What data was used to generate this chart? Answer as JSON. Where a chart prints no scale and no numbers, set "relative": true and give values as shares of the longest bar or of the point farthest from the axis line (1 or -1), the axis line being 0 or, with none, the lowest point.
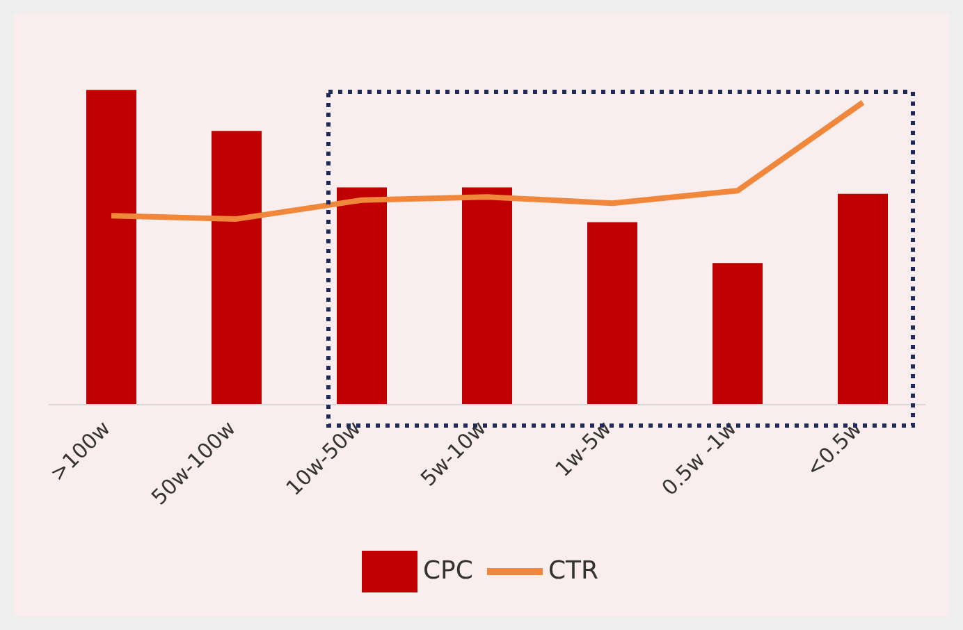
{
  "chart_data": {
    "type": "bar",
    "relative": true,
    "categories": [
      ">100w",
      "50w-100w",
      "10w-50w",
      "5w-10w",
      "1w-5w",
      "0.5w -1w",
      "<0.5w"
    ],
    "series": [
      {
        "name": "CPC",
        "color": "#c00000",
        "values": [
          1,
          0.87,
          0.69,
          0.69,
          0.58,
          0.45,
          0.67
        ]
      },
      {
        "name": "CTR",
        "type": "line",
        "color": "#f0873a",
        "values": [
          0.6,
          0.59,
          0.65,
          0.66,
          0.64,
          0.68,
          0.96
        ]
      }
    ],
    "legend": "bottom",
    "grid": false,
    "marker": "none"
  }
}
